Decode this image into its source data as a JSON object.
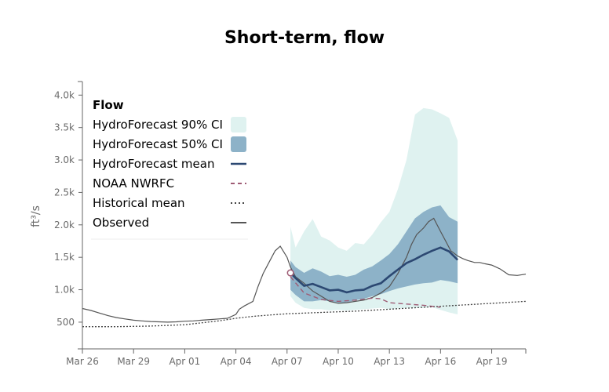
{
  "chart_data": {
    "type": "line",
    "title": "Short-term, flow",
    "ylabel": "ft³/s",
    "xlabel": "",
    "x_axis": {
      "start": "Mar 26",
      "end": "Apr 21",
      "tick_labels": [
        "Mar 26",
        "Mar 29",
        "Apr 01",
        "Apr 04",
        "Apr 07",
        "Apr 10",
        "Apr 13",
        "Apr 16",
        "Apr 19"
      ],
      "tick_days": [
        0,
        3,
        6,
        9,
        12,
        15,
        18,
        21,
        24
      ]
    },
    "y_axis": {
      "ylim": [
        0,
        4000
      ],
      "tick_labels": [
        "500",
        "1.0k",
        "1.5k",
        "2.0k",
        "2.5k",
        "3.0k",
        "3.5k",
        "4.0k"
      ],
      "tick_values": [
        500,
        1000,
        1500,
        2000,
        2500,
        3000,
        3500,
        4000
      ]
    },
    "grid": false,
    "legend": {
      "title": "Flow",
      "placement": "top-left",
      "entries": [
        {
          "label": "HydroForecast 90% CI",
          "kind": "band90"
        },
        {
          "label": "HydroForecast 50% CI",
          "kind": "band50"
        },
        {
          "label": "HydroForecast mean",
          "kind": "mean"
        },
        {
          "label": "NOAA NWRFC",
          "kind": "noaa"
        },
        {
          "label": "Historical mean",
          "kind": "hist"
        },
        {
          "label": "Observed",
          "kind": "obs"
        }
      ]
    },
    "colors": {
      "band90": "#dff2f0",
      "band50": "#8db2c8",
      "mean": "#2c4872",
      "noaa": "#9e5b74",
      "hist": "#444444",
      "obs": "#555555",
      "axis": "#666666"
    },
    "series": [
      {
        "name": "Observed",
        "x": [
          0,
          0.5,
          1,
          1.5,
          2,
          2.5,
          3,
          3.5,
          4,
          4.5,
          5,
          5.5,
          6,
          6.5,
          7,
          7.5,
          8,
          8.5,
          9,
          9.2,
          9.5,
          10,
          10.3,
          10.6,
          11,
          11.3,
          11.6,
          12,
          12.2,
          12.5,
          13,
          13.5,
          14,
          14.5,
          15,
          15.5,
          16,
          16.5,
          17,
          17.5,
          18,
          18.5,
          19,
          19.3,
          19.6,
          20,
          20.3,
          20.6,
          21,
          21.3,
          21.6,
          22,
          22.3,
          22.6,
          23,
          23.3,
          23.6,
          24,
          24.5,
          25,
          25.5,
          26
        ],
        "values": [
          710,
          680,
          640,
          600,
          570,
          550,
          530,
          520,
          510,
          505,
          500,
          505,
          515,
          520,
          530,
          540,
          550,
          560,
          620,
          700,
          750,
          820,
          1050,
          1250,
          1450,
          1600,
          1670,
          1500,
          1350,
          1200,
          1100,
          980,
          900,
          820,
          790,
          800,
          820,
          840,
          880,
          950,
          1050,
          1250,
          1500,
          1700,
          1850,
          1950,
          2050,
          2100,
          1900,
          1750,
          1600,
          1520,
          1480,
          1450,
          1420,
          1420,
          1400,
          1380,
          1320,
          1230,
          1220,
          1240
        ]
      },
      {
        "name": "Historical mean",
        "x": [
          0,
          2,
          4,
          6,
          8,
          9,
          10,
          11,
          12,
          14,
          16,
          18,
          20,
          22,
          24,
          26
        ],
        "values": [
          430,
          430,
          440,
          460,
          520,
          560,
          590,
          610,
          630,
          650,
          670,
          700,
          730,
          760,
          790,
          820
        ]
      },
      {
        "name": "NOAA NWRFC",
        "x": [
          12.2,
          13,
          14,
          15,
          16,
          17,
          17.5,
          18,
          19,
          20,
          21
        ],
        "values": [
          1200,
          950,
          850,
          820,
          840,
          870,
          860,
          800,
          780,
          760,
          730
        ]
      },
      {
        "name": "HydroForecast mean",
        "x": [
          12.2,
          12.5,
          13,
          13.5,
          14,
          14.5,
          15,
          15.5,
          16,
          16.5,
          17,
          17.5,
          18,
          18.5,
          19,
          19.5,
          20,
          20.5,
          21,
          21.5,
          22
        ],
        "values": [
          1260,
          1180,
          1060,
          1090,
          1040,
          990,
          1000,
          960,
          990,
          1000,
          1060,
          1100,
          1210,
          1310,
          1410,
          1470,
          1540,
          1600,
          1650,
          1590,
          1460
        ]
      }
    ],
    "bands": [
      {
        "name": "HydroForecast 90% CI",
        "x": [
          12.2,
          12.5,
          13,
          13.5,
          14,
          14.5,
          15,
          15.5,
          16,
          16.5,
          17,
          17.5,
          18,
          18.5,
          19,
          19.5,
          20,
          20.5,
          21,
          21.5,
          22
        ],
        "upper": [
          1970,
          1650,
          1900,
          2090,
          1820,
          1760,
          1650,
          1600,
          1720,
          1700,
          1850,
          2040,
          2200,
          2550,
          3000,
          3700,
          3800,
          3780,
          3720,
          3650,
          3300
        ],
        "lower": [
          900,
          800,
          720,
          700,
          700,
          680,
          690,
          680,
          690,
          700,
          710,
          720,
          700,
          710,
          720,
          720,
          720,
          730,
          690,
          650,
          620
        ]
      },
      {
        "name": "HydroForecast 50% CI",
        "x": [
          12.2,
          12.5,
          13,
          13.5,
          14,
          14.5,
          15,
          15.5,
          16,
          16.5,
          17,
          17.5,
          18,
          18.5,
          19,
          19.5,
          20,
          20.5,
          21,
          21.5,
          22
        ],
        "upper": [
          1450,
          1350,
          1260,
          1330,
          1280,
          1210,
          1230,
          1200,
          1230,
          1310,
          1360,
          1450,
          1550,
          1700,
          1900,
          2100,
          2200,
          2270,
          2300,
          2120,
          2050
        ],
        "lower": [
          1000,
          920,
          820,
          820,
          840,
          820,
          800,
          800,
          840,
          860,
          900,
          930,
          980,
          1020,
          1050,
          1080,
          1100,
          1110,
          1150,
          1130,
          1100
        ]
      }
    ],
    "forecast_start": {
      "x": 12.2,
      "value": 1260
    }
  }
}
